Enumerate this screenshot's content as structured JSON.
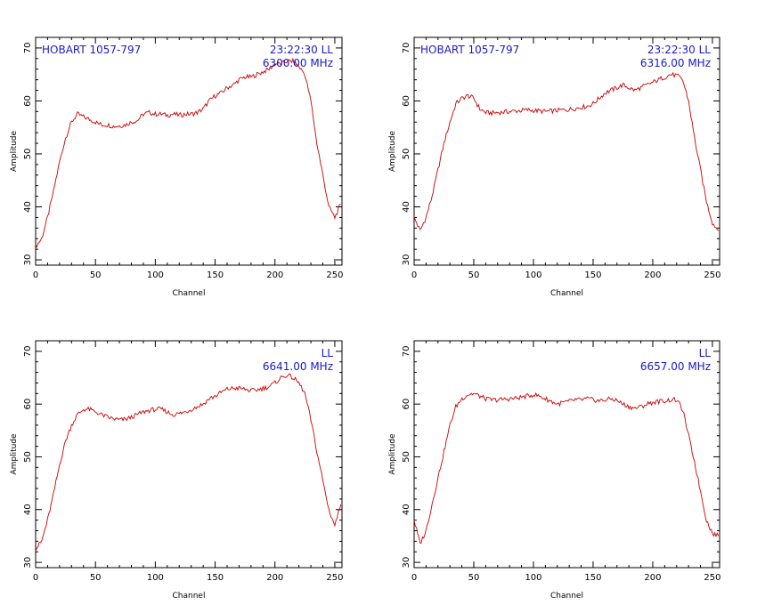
{
  "chart_data": [
    {
      "type": "line",
      "xlabel": "Channel",
      "ylabel": "Amplitude",
      "xlim": [
        0,
        256
      ],
      "ylim": [
        29,
        72
      ],
      "xticks": [
        0,
        50,
        100,
        150,
        200,
        250
      ],
      "yticks": [
        30,
        40,
        50,
        60,
        70
      ],
      "annotations": {
        "source": "HOBART 1057-797",
        "time": "23:22:30",
        "pol": "LL",
        "freq": "6300.00 MHz"
      },
      "line_color": "#cc0000",
      "text_color": "#1a1ac8",
      "series": [
        {
          "x": [
            0,
            5,
            10,
            15,
            20,
            25,
            30,
            35,
            40,
            45,
            50,
            55,
            60,
            65,
            70,
            75,
            80,
            85,
            90,
            95,
            100,
            105,
            110,
            115,
            120,
            125,
            130,
            135,
            140,
            145,
            150,
            155,
            160,
            165,
            170,
            175,
            180,
            185,
            190,
            195,
            200,
            205,
            210,
            215,
            220,
            225,
            230,
            235,
            240,
            245,
            250,
            255
          ],
          "y": [
            32.5,
            34,
            38,
            43,
            48.5,
            53,
            56,
            57.5,
            57,
            56.5,
            56,
            55.5,
            55.5,
            55.2,
            55.3,
            55.5,
            56,
            56.3,
            57.5,
            57.8,
            57.5,
            57.5,
            57.3,
            57.5,
            57.3,
            57.5,
            57.5,
            57.8,
            58.5,
            60,
            61,
            61.5,
            62.5,
            63,
            64,
            64.5,
            64.5,
            65,
            65.5,
            66,
            67,
            67,
            67.5,
            67.5,
            66.5,
            65,
            60,
            52,
            46,
            40,
            38,
            40.5
          ]
        }
      ]
    },
    {
      "type": "line",
      "xlabel": "Channel",
      "ylabel": "Amplitude",
      "xlim": [
        0,
        256
      ],
      "ylim": [
        29,
        72
      ],
      "xticks": [
        0,
        50,
        100,
        150,
        200,
        250
      ],
      "yticks": [
        30,
        40,
        50,
        60,
        70
      ],
      "annotations": {
        "source": "HOBART 1057-797",
        "time": "23:22:30",
        "pol": "LL",
        "freq": "6316.00 MHz"
      },
      "line_color": "#cc0000",
      "text_color": "#1a1ac8",
      "series": [
        {
          "x": [
            0,
            5,
            10,
            15,
            20,
            25,
            30,
            35,
            40,
            45,
            50,
            55,
            60,
            65,
            70,
            75,
            80,
            85,
            90,
            95,
            100,
            105,
            110,
            115,
            120,
            125,
            130,
            135,
            140,
            145,
            150,
            155,
            160,
            165,
            170,
            175,
            180,
            185,
            190,
            195,
            200,
            205,
            210,
            215,
            220,
            225,
            230,
            235,
            240,
            245,
            250,
            255
          ],
          "y": [
            38,
            35.5,
            38,
            42,
            47,
            52,
            56,
            59.5,
            60.5,
            61,
            60.5,
            58.5,
            57.8,
            57.7,
            57.8,
            57.9,
            58,
            58.1,
            58.2,
            58.3,
            58.2,
            58.1,
            58,
            58.1,
            58.2,
            58.3,
            58.4,
            58.6,
            58.8,
            59,
            59.5,
            60.5,
            61.5,
            62,
            62.5,
            63,
            62.5,
            62,
            62.5,
            63,
            63.5,
            64,
            64.5,
            65,
            64.8,
            64,
            60,
            53,
            47,
            41,
            37,
            35.5
          ]
        }
      ]
    },
    {
      "type": "line",
      "xlabel": "Channel",
      "ylabel": "Amplitude",
      "xlim": [
        0,
        256
      ],
      "ylim": [
        29,
        72
      ],
      "xticks": [
        0,
        50,
        100,
        150,
        200,
        250
      ],
      "yticks": [
        30,
        40,
        50,
        60,
        70
      ],
      "annotations": {
        "source": "",
        "time": "",
        "pol": "LL",
        "freq": "6641.00 MHz"
      },
      "line_color": "#cc0000",
      "text_color": "#1a1ac8",
      "series": [
        {
          "x": [
            0,
            5,
            10,
            15,
            20,
            25,
            30,
            35,
            40,
            45,
            50,
            55,
            60,
            65,
            70,
            75,
            80,
            85,
            90,
            95,
            100,
            105,
            110,
            115,
            120,
            125,
            130,
            135,
            140,
            145,
            150,
            155,
            160,
            165,
            170,
            175,
            180,
            185,
            190,
            195,
            200,
            205,
            210,
            215,
            220,
            225,
            230,
            235,
            240,
            245,
            250,
            255
          ],
          "y": [
            32.5,
            34,
            38,
            43,
            48.5,
            53,
            56,
            58,
            59,
            59,
            58.5,
            58,
            57.5,
            57.2,
            57,
            57.1,
            57.5,
            58,
            58.5,
            58.8,
            59,
            59,
            58.5,
            58,
            58.2,
            58.5,
            59,
            59.5,
            60,
            61,
            61.5,
            62.2,
            62.8,
            63,
            63,
            62.8,
            62.5,
            62.7,
            63,
            63.3,
            64,
            65,
            65.5,
            65,
            64,
            62,
            57,
            51,
            45.5,
            40,
            37,
            41
          ]
        }
      ]
    },
    {
      "type": "line",
      "xlabel": "Channel",
      "ylabel": "Amplitude",
      "xlim": [
        0,
        256
      ],
      "ylim": [
        29,
        72
      ],
      "xticks": [
        0,
        50,
        100,
        150,
        200,
        250
      ],
      "yticks": [
        30,
        40,
        50,
        60,
        70
      ],
      "annotations": {
        "source": "",
        "time": "",
        "pol": "LL",
        "freq": "6657.00 MHz"
      },
      "line_color": "#cc0000",
      "text_color": "#1a1ac8",
      "series": [
        {
          "x": [
            0,
            5,
            10,
            15,
            20,
            25,
            30,
            35,
            40,
            45,
            50,
            55,
            60,
            65,
            70,
            75,
            80,
            85,
            90,
            95,
            100,
            105,
            110,
            115,
            120,
            125,
            130,
            135,
            140,
            145,
            150,
            155,
            160,
            165,
            170,
            175,
            180,
            185,
            190,
            195,
            200,
            205,
            210,
            215,
            220,
            225,
            230,
            235,
            240,
            245,
            250,
            255
          ],
          "y": [
            38,
            33.5,
            36,
            41,
            46,
            51,
            56,
            59.5,
            61,
            61.8,
            62,
            61.5,
            61,
            60.8,
            60.8,
            60.9,
            61,
            61.1,
            61.3,
            61.5,
            61.8,
            61.5,
            61,
            60.5,
            60,
            60.3,
            60.5,
            60.8,
            60.8,
            61,
            60.8,
            60.6,
            60.8,
            61,
            60.7,
            60,
            59.5,
            59.2,
            59.5,
            60,
            60.3,
            60.5,
            60.6,
            60.8,
            60.8,
            59,
            54,
            49,
            43.5,
            38,
            35.5,
            35
          ]
        }
      ]
    }
  ]
}
